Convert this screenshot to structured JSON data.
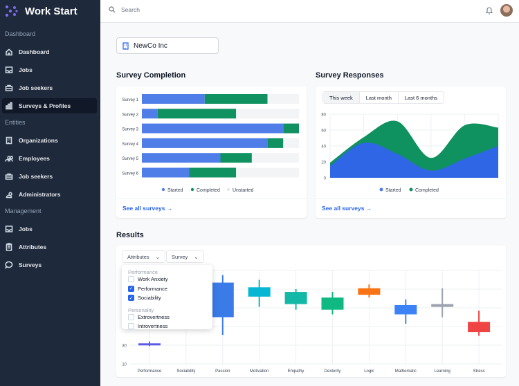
{
  "app": {
    "title": "Work Start"
  },
  "sidebar": {
    "sections": [
      {
        "label": "Dashboard",
        "items": [
          {
            "label": "Dashboard",
            "icon": "home-icon"
          },
          {
            "label": "Jobs",
            "icon": "inbox-icon"
          },
          {
            "label": "Job seekers",
            "icon": "briefcase-icon"
          },
          {
            "label": "Surveys & Profiles",
            "icon": "bar-chart-icon",
            "active": true
          }
        ]
      },
      {
        "label": "Entities",
        "items": [
          {
            "label": "Organizations",
            "icon": "building-icon"
          },
          {
            "label": "Employees",
            "icon": "users-icon"
          },
          {
            "label": "Job seekers",
            "icon": "briefcase-icon"
          },
          {
            "label": "Administrators",
            "icon": "user-icon"
          }
        ]
      },
      {
        "label": "Management",
        "items": [
          {
            "label": "Jobs",
            "icon": "inbox-icon"
          },
          {
            "label": "Attributes",
            "icon": "clipboard-icon"
          },
          {
            "label": "Surveys",
            "icon": "chat-icon"
          }
        ]
      }
    ]
  },
  "header": {
    "search_placeholder": "Search"
  },
  "org": {
    "name": "NewCo Inc"
  },
  "completion": {
    "title": "Survey Completion",
    "link": "See all surveys →"
  },
  "responses": {
    "title": "Survey Responses",
    "link": "See all surveys →",
    "ranges": [
      "This week",
      "Last month",
      "Last 6 months"
    ],
    "selected": "This week"
  },
  "results": {
    "title": "Results",
    "filters": [
      "Attributes",
      "Survey"
    ],
    "dropdown": [
      {
        "group": "Performance",
        "options": [
          {
            "label": "Work Anxiety",
            "checked": false
          },
          {
            "label": "Performance",
            "checked": true
          },
          {
            "label": "Sociability",
            "checked": true
          }
        ]
      },
      {
        "group": "Personality",
        "options": [
          {
            "label": "Extrovertness",
            "checked": false
          },
          {
            "label": "Introvertness",
            "checked": false
          }
        ]
      }
    ]
  },
  "colors": {
    "started": "#4f7ee8",
    "completed": "#0f9160",
    "unstarted": "#f3f4f6",
    "accent": "#2563eb"
  },
  "chart_data": [
    {
      "type": "bar",
      "stacked": true,
      "orientation": "horizontal",
      "categories": [
        "Survey 1",
        "Survey 2",
        "Survey 3",
        "Survey 4",
        "Survey 5",
        "Survey 6"
      ],
      "series": [
        {
          "name": "Started",
          "values": [
            40,
            10,
            90,
            80,
            50,
            30
          ]
        },
        {
          "name": "Completed",
          "values": [
            40,
            50,
            10,
            10,
            20,
            30
          ]
        },
        {
          "name": "Unstarted",
          "values": [
            20,
            40,
            0,
            10,
            30,
            40
          ]
        }
      ],
      "legend": "bottom"
    },
    {
      "type": "area",
      "stacked": true,
      "yticks": [
        0,
        20,
        40,
        60,
        80
      ],
      "ylim": [
        0,
        80
      ],
      "grid": true,
      "legend": "bottom",
      "series": [
        {
          "name": "Started",
          "values": [
            15,
            44,
            30,
            9,
            24,
            40
          ]
        },
        {
          "name": "Completed",
          "values": [
            4,
            7,
            41,
            16,
            42,
            23
          ]
        }
      ]
    },
    {
      "type": "candlestick",
      "categories": [
        "Performance",
        "Sociability",
        "Passion",
        "Motivation",
        "Empathy",
        "Dexterity",
        "Logic",
        "Mathematic",
        "Learning",
        "Stress"
      ],
      "yticks": [
        10,
        30
      ],
      "ylim": [
        10,
        110
      ],
      "grid": true,
      "values": [
        {
          "open": 32,
          "close": 31,
          "low": 29,
          "high": 34,
          "color": "#5b5be6"
        },
        null,
        {
          "open": 97,
          "close": 60,
          "low": 41,
          "high": 105,
          "color": "#3b7be8"
        },
        {
          "open": 92,
          "close": 82,
          "low": 71,
          "high": 100,
          "color": "#06b6d4"
        },
        {
          "open": 87,
          "close": 74,
          "low": 68,
          "high": 90,
          "color": "#14b8a6"
        },
        {
          "open": 81,
          "close": 68,
          "low": 63,
          "high": 87,
          "color": "#10b981"
        },
        {
          "open": 91,
          "close": 84,
          "low": 81,
          "high": 95,
          "color": "#f97316"
        },
        {
          "open": 73,
          "close": 63,
          "low": 53,
          "high": 79,
          "color": "#3b82f6"
        },
        {
          "open": 74,
          "close": 71,
          "low": 60,
          "high": 91,
          "color": "#9ca3af"
        },
        {
          "open": 55,
          "close": 44,
          "low": 40,
          "high": 67,
          "color": "#ef4444"
        }
      ]
    }
  ]
}
